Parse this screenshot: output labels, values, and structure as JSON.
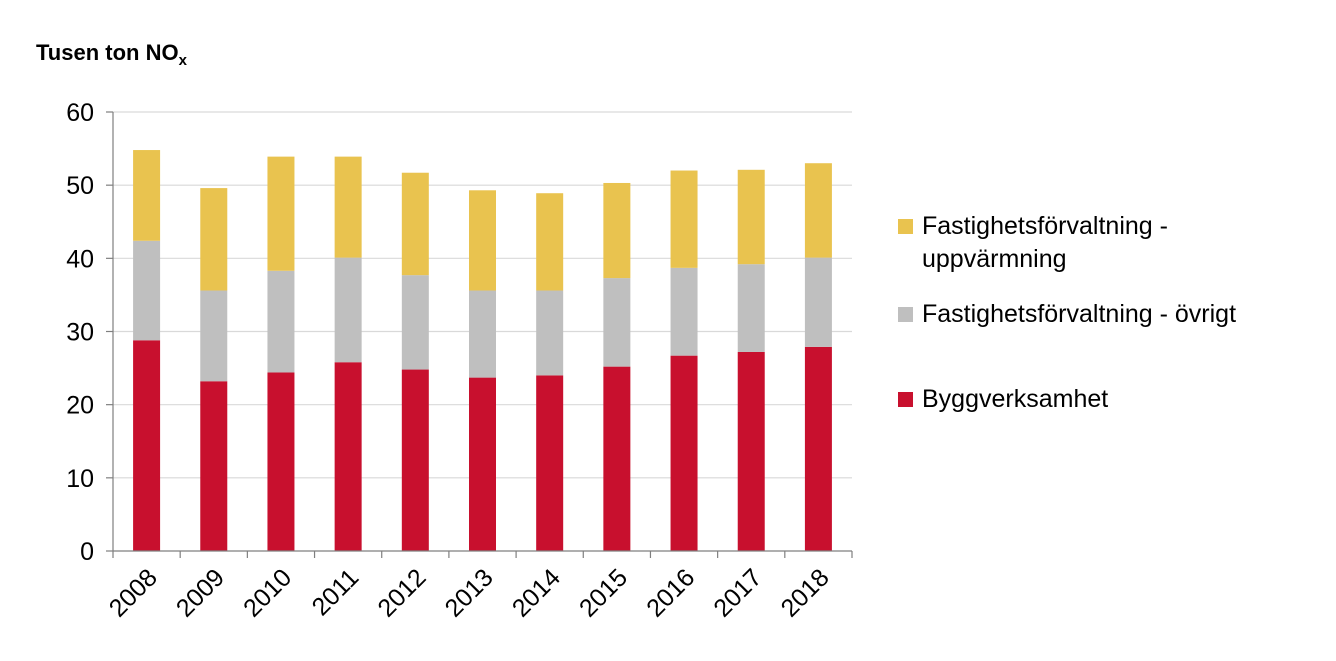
{
  "chart_data": {
    "type": "bar",
    "stacked": true,
    "title": "",
    "ylabel": "Tusen ton NO",
    "ylabel_subscript": "x",
    "xlabel": "",
    "ylim": [
      0,
      60
    ],
    "yticks": [
      "0",
      "10",
      "20",
      "30",
      "40",
      "50",
      "60"
    ],
    "grid": true,
    "legend_position": "right",
    "categories": [
      "2008",
      "2009",
      "2010",
      "2011",
      "2012",
      "2013",
      "2014",
      "2015",
      "2016",
      "2017",
      "2018"
    ],
    "series": [
      {
        "name": "Byggverksamhet",
        "color": "#c8102e",
        "values": [
          28.8,
          23.2,
          24.4,
          25.8,
          24.8,
          23.7,
          24.0,
          25.2,
          26.7,
          27.2,
          27.9
        ]
      },
      {
        "name": "Fastighetsförvaltning - övrigt",
        "color": "#bfbfbf",
        "values": [
          13.6,
          12.4,
          13.9,
          14.3,
          12.9,
          11.9,
          11.6,
          12.1,
          12.0,
          12.0,
          12.2
        ]
      },
      {
        "name": "Fastighetsförvaltning - uppvärmning",
        "color": "#e9c34f",
        "values": [
          12.4,
          14.0,
          15.6,
          13.8,
          14.0,
          13.7,
          13.3,
          13.0,
          13.3,
          12.9,
          12.9
        ]
      }
    ],
    "legend_order": [
      {
        "label_line1": "Fastighetsförvaltning -",
        "label_line2": "uppvärmning",
        "color": "#e9c34f"
      },
      {
        "label_line1": "Fastighetsförvaltning - övrigt",
        "label_line2": "",
        "color": "#bfbfbf"
      },
      {
        "label_line1": "Byggverksamhet",
        "label_line2": "",
        "color": "#c8102e"
      }
    ]
  }
}
